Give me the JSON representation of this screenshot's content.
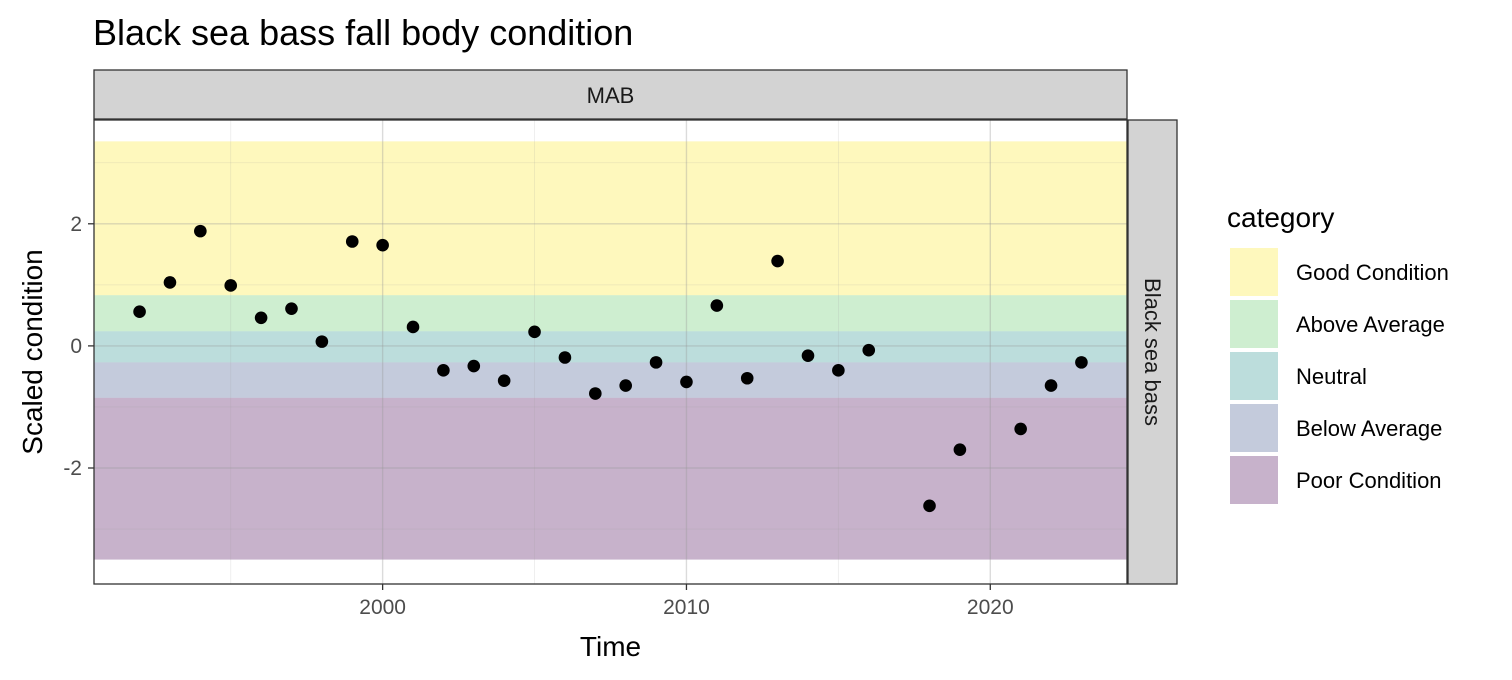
{
  "chart_data": {
    "type": "scatter",
    "title": "Black sea bass fall body condition",
    "xlabel": "Time",
    "ylabel": "Scaled condition",
    "facet_top": "MAB",
    "facet_right": "Black sea bass",
    "xlim": [
      1990.5,
      2024.5
    ],
    "ylim": [
      -3.9,
      3.7
    ],
    "x_ticks": [
      2000,
      2010,
      2020
    ],
    "y_ticks": [
      -2,
      0,
      2
    ],
    "grid": true,
    "legend": {
      "title": "category",
      "placement": "right",
      "entries": [
        {
          "label": "Good Condition",
          "color": "#FDE725"
        },
        {
          "label": "Above Average",
          "color": "#5DC863"
        },
        {
          "label": "Neutral",
          "color": "#21908C"
        },
        {
          "label": "Below Average",
          "color": "#3B528B"
        },
        {
          "label": "Poor Condition",
          "color": "#440154"
        }
      ]
    },
    "bands": [
      {
        "category": "Good Condition",
        "ymin": 0.83,
        "ymax": 3.35
      },
      {
        "category": "Above Average",
        "ymin": 0.24,
        "ymax": 0.83
      },
      {
        "category": "Neutral",
        "ymin": -0.27,
        "ymax": 0.24
      },
      {
        "category": "Below Average",
        "ymin": -0.85,
        "ymax": -0.27
      },
      {
        "category": "Poor Condition",
        "ymin": -3.5,
        "ymax": -0.85
      }
    ],
    "band_opacity": 0.3,
    "point_color": "#000000",
    "points": [
      {
        "x": 1992,
        "y": 0.56
      },
      {
        "x": 1993,
        "y": 1.04
      },
      {
        "x": 1994,
        "y": 1.88
      },
      {
        "x": 1995,
        "y": 0.99
      },
      {
        "x": 1996,
        "y": 0.46
      },
      {
        "x": 1997,
        "y": 0.61
      },
      {
        "x": 1998,
        "y": 0.07
      },
      {
        "x": 1999,
        "y": 1.71
      },
      {
        "x": 2000,
        "y": 1.65
      },
      {
        "x": 2001,
        "y": 0.31
      },
      {
        "x": 2002,
        "y": -0.4
      },
      {
        "x": 2003,
        "y": -0.33
      },
      {
        "x": 2004,
        "y": -0.57
      },
      {
        "x": 2005,
        "y": 0.23
      },
      {
        "x": 2006,
        "y": -0.19
      },
      {
        "x": 2007,
        "y": -0.78
      },
      {
        "x": 2008,
        "y": -0.65
      },
      {
        "x": 2009,
        "y": -0.27
      },
      {
        "x": 2010,
        "y": -0.59
      },
      {
        "x": 2011,
        "y": 0.66
      },
      {
        "x": 2012,
        "y": -0.53
      },
      {
        "x": 2013,
        "y": 1.39
      },
      {
        "x": 2014,
        "y": -0.16
      },
      {
        "x": 2015,
        "y": -0.4
      },
      {
        "x": 2016,
        "y": -0.07
      },
      {
        "x": 2018,
        "y": -2.62
      },
      {
        "x": 2019,
        "y": -1.7
      },
      {
        "x": 2021,
        "y": -1.36
      },
      {
        "x": 2022,
        "y": -0.65
      },
      {
        "x": 2023,
        "y": -0.27
      }
    ]
  }
}
